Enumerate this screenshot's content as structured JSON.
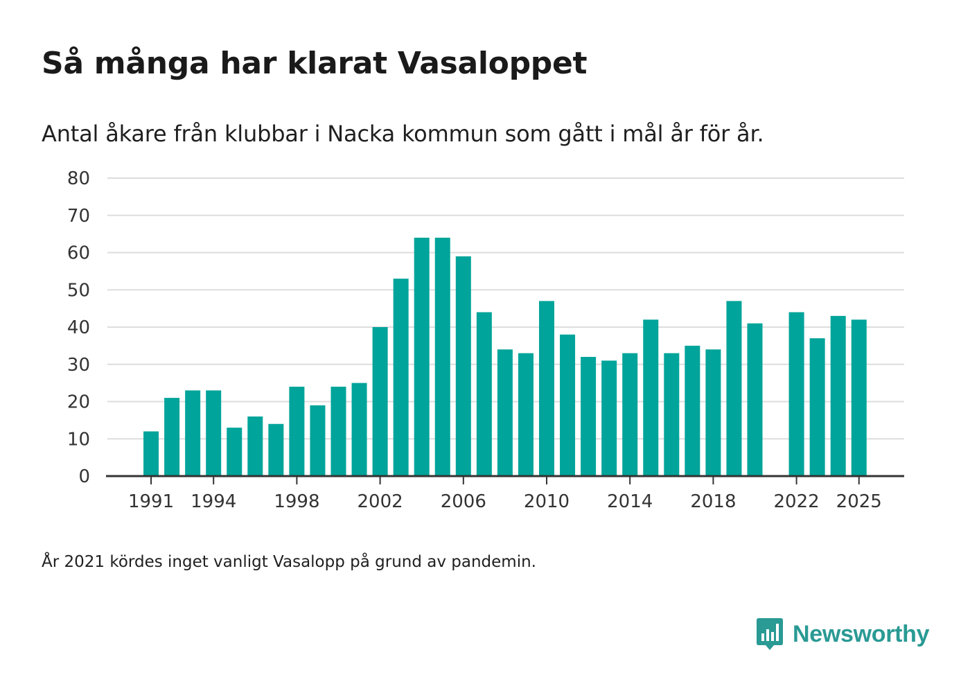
{
  "title": "Så många har klarat Vasaloppet",
  "subtitle": "Antal åkare från klubbar i Nacka kommun som gått i mål år för år.",
  "note": "År 2021 kördes inget vanligt Vasalopp på grund av pandemin.",
  "brand": {
    "name": "Newsworthy"
  },
  "colors": {
    "bar": "#00a49a",
    "grid": "#dddddd",
    "axis": "#333333",
    "text": "#333333",
    "brand": "#2a9a94"
  },
  "chart_data": {
    "type": "bar",
    "title": "Så många har klarat Vasaloppet",
    "xlabel": "",
    "ylabel": "",
    "ylim": [
      0,
      80
    ],
    "yticks": [
      0,
      10,
      20,
      30,
      40,
      50,
      60,
      70,
      80
    ],
    "xticks": [
      "1991",
      "1994",
      "1998",
      "2002",
      "2006",
      "2010",
      "2014",
      "2018",
      "2022",
      "2025"
    ],
    "grid": true,
    "categories": [
      "1990",
      "1991",
      "1992",
      "1993",
      "1994",
      "1995",
      "1996",
      "1997",
      "1998",
      "1999",
      "2000",
      "2001",
      "2002",
      "2003",
      "2004",
      "2005",
      "2006",
      "2007",
      "2008",
      "2009",
      "2010",
      "2011",
      "2012",
      "2013",
      "2014",
      "2015",
      "2016",
      "2017",
      "2018",
      "2019",
      "2020",
      "2021",
      "2022",
      "2023",
      "2024",
      "2025"
    ],
    "values": [
      null,
      12,
      21,
      23,
      23,
      13,
      16,
      14,
      24,
      19,
      24,
      25,
      40,
      53,
      64,
      64,
      59,
      44,
      34,
      33,
      47,
      38,
      32,
      31,
      33,
      42,
      33,
      35,
      34,
      47,
      41,
      null,
      44,
      37,
      43,
      42
    ]
  }
}
